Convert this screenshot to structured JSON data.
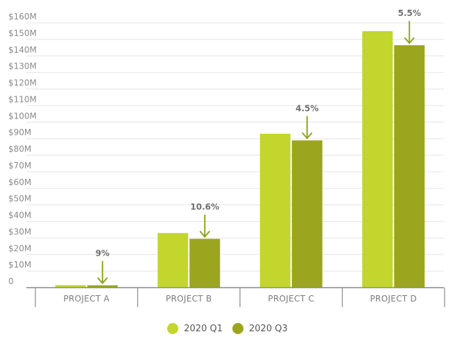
{
  "chart_data": {
    "type": "bar",
    "title": "",
    "xlabel": "",
    "ylabel": "",
    "ylim": [
      0,
      160
    ],
    "y_unit": "$M",
    "y_ticks": [
      "0",
      "$10M",
      "$20M",
      "$30M",
      "$40M",
      "$50M",
      "$60M",
      "$70M",
      "$80M",
      "$90M",
      "$100M",
      "$110M",
      "$120M",
      "$130M",
      "$140M",
      "$150M",
      "$160M"
    ],
    "categories": [
      "PROJECT A",
      "PROJECT B",
      "PROJECT C",
      "PROJECT D"
    ],
    "series": [
      {
        "name": "2020 Q1",
        "color": "#c2d62e",
        "values": [
          1.5,
          33,
          93,
          155
        ]
      },
      {
        "name": "2020 Q3",
        "color": "#9ba51e",
        "values": [
          1.4,
          29.5,
          89,
          146.5
        ]
      }
    ],
    "annotations": [
      "9%",
      "10.6%",
      "4.5%",
      "5.5%"
    ],
    "annotation_color": "#8fa51c",
    "grid": true,
    "legend_position": "bottom"
  },
  "legend": [
    {
      "label": "2020 Q1",
      "color": "#c2d62e"
    },
    {
      "label": "2020 Q3",
      "color": "#9ba51e"
    }
  ]
}
